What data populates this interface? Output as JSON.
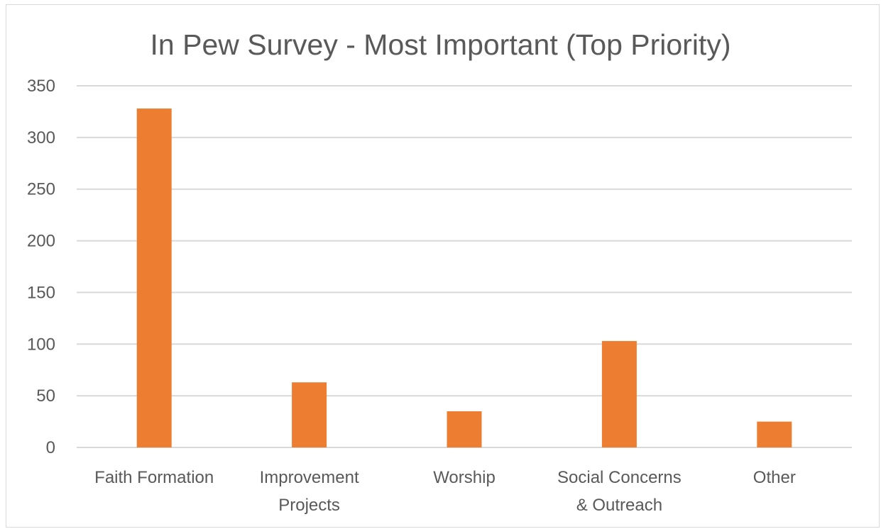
{
  "chart_data": {
    "type": "bar",
    "title": "In Pew Survey - Most Important (Top Priority)",
    "categories": [
      [
        "Faith Formation"
      ],
      [
        "Improvement",
        "Projects"
      ],
      [
        "Worship"
      ],
      [
        "Social Concerns",
        "& Outreach"
      ],
      [
        "Other"
      ]
    ],
    "values": [
      328,
      63,
      35,
      103,
      25
    ],
    "ylim": [
      0,
      350
    ],
    "yticks": [
      0,
      50,
      100,
      150,
      200,
      250,
      300,
      350
    ],
    "grid": true,
    "bar_color": "#ed7d31",
    "gridline_color": "#d9d9d9"
  }
}
